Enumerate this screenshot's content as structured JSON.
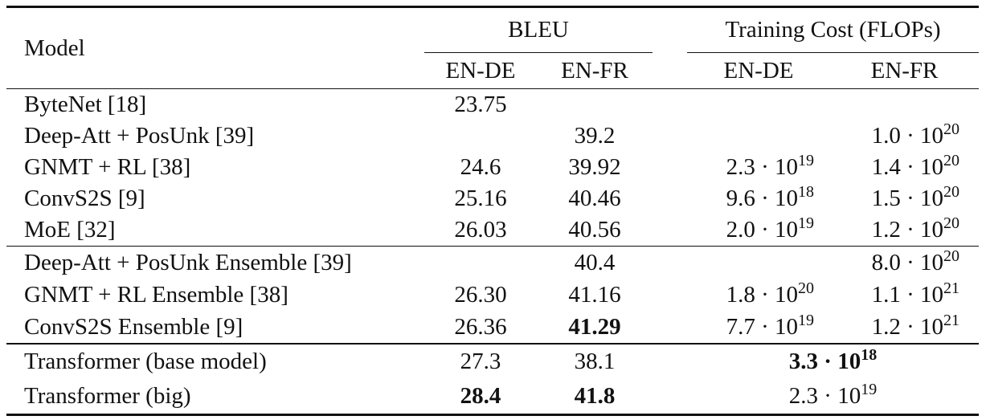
{
  "table": {
    "header": {
      "model": "Model",
      "groups": [
        "BLEU",
        "Training Cost (FLOPs)"
      ],
      "subcolumns": [
        "EN-DE",
        "EN-FR",
        "EN-DE",
        "EN-FR"
      ]
    },
    "sections": [
      [
        {
          "model": "ByteNet [18]",
          "cells": [
            {
              "text": "23.75"
            },
            null,
            null,
            null
          ]
        },
        {
          "model": "Deep-Att + PosUnk [39]",
          "cells": [
            null,
            {
              "text": "39.2"
            },
            null,
            {
              "base": "1.0 · 10",
              "exp": "20"
            }
          ]
        },
        {
          "model": "GNMT + RL [38]",
          "cells": [
            {
              "text": "24.6"
            },
            {
              "text": "39.92"
            },
            {
              "base": "2.3 · 10",
              "exp": "19"
            },
            {
              "base": "1.4 · 10",
              "exp": "20"
            }
          ]
        },
        {
          "model": "ConvS2S [9]",
          "cells": [
            {
              "text": "25.16"
            },
            {
              "text": "40.46"
            },
            {
              "base": "9.6 · 10",
              "exp": "18"
            },
            {
              "base": "1.5 · 10",
              "exp": "20"
            }
          ]
        },
        {
          "model": "MoE [32]",
          "cells": [
            {
              "text": "26.03"
            },
            {
              "text": "40.56"
            },
            {
              "base": "2.0 · 10",
              "exp": "19"
            },
            {
              "base": "1.2 · 10",
              "exp": "20"
            }
          ]
        }
      ],
      [
        {
          "model": "Deep-Att + PosUnk Ensemble [39]",
          "cells": [
            null,
            {
              "text": "40.4"
            },
            null,
            {
              "base": "8.0 · 10",
              "exp": "20"
            }
          ]
        },
        {
          "model": "GNMT + RL Ensemble [38]",
          "cells": [
            {
              "text": "26.30"
            },
            {
              "text": "41.16"
            },
            {
              "base": "1.8 · 10",
              "exp": "20"
            },
            {
              "base": "1.1 · 10",
              "exp": "21"
            }
          ]
        },
        {
          "model": "ConvS2S Ensemble [9]",
          "cells": [
            {
              "text": "26.36"
            },
            {
              "text": "41.29",
              "bold": true
            },
            {
              "base": "7.7 · 10",
              "exp": "19"
            },
            {
              "base": "1.2 · 10",
              "exp": "21"
            }
          ]
        }
      ],
      [
        {
          "model": "Transformer (base model)",
          "cells": [
            {
              "text": "27.3"
            },
            {
              "text": "38.1"
            },
            {
              "base": "3.3 · 10",
              "exp": "18",
              "bold": true,
              "span": 2
            }
          ]
        },
        {
          "model": "Transformer (big)",
          "cells": [
            {
              "text": "28.4",
              "bold": true
            },
            {
              "text": "41.8",
              "bold": true
            },
            {
              "base": "2.3 · 10",
              "exp": "19",
              "span": 2
            }
          ]
        }
      ]
    ]
  }
}
